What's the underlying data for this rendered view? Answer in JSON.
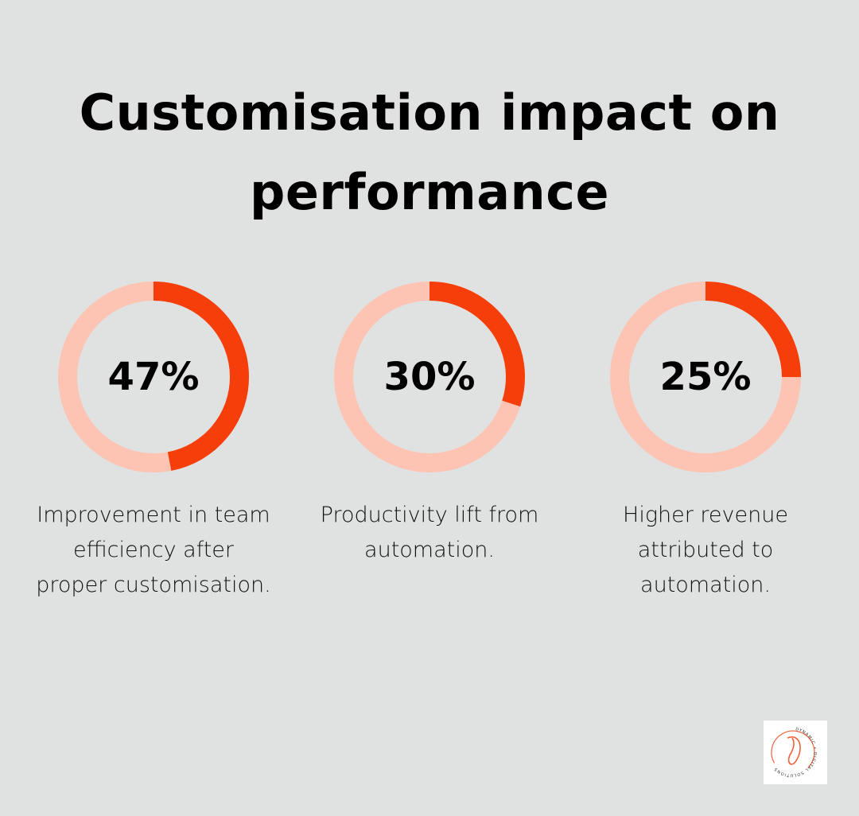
{
  "title": "Customisation impact on performance",
  "colors": {
    "background": "#e0e2e1",
    "accent": "#f63e0a",
    "track": "#fdc4b3"
  },
  "chart_data": {
    "type": "pie",
    "subtype": "donut",
    "series": [
      {
        "value": 47,
        "label": "47%",
        "description": "Improvement in team efficiency after proper customisation."
      },
      {
        "value": 30,
        "label": "30%",
        "description": "Productivity lift from automation."
      },
      {
        "value": 25,
        "label": "25%",
        "description": "Higher revenue attributed to automation."
      }
    ]
  },
  "logo": {
    "text": "DYNAMIC • DIGITAL SOLUTIONS"
  }
}
